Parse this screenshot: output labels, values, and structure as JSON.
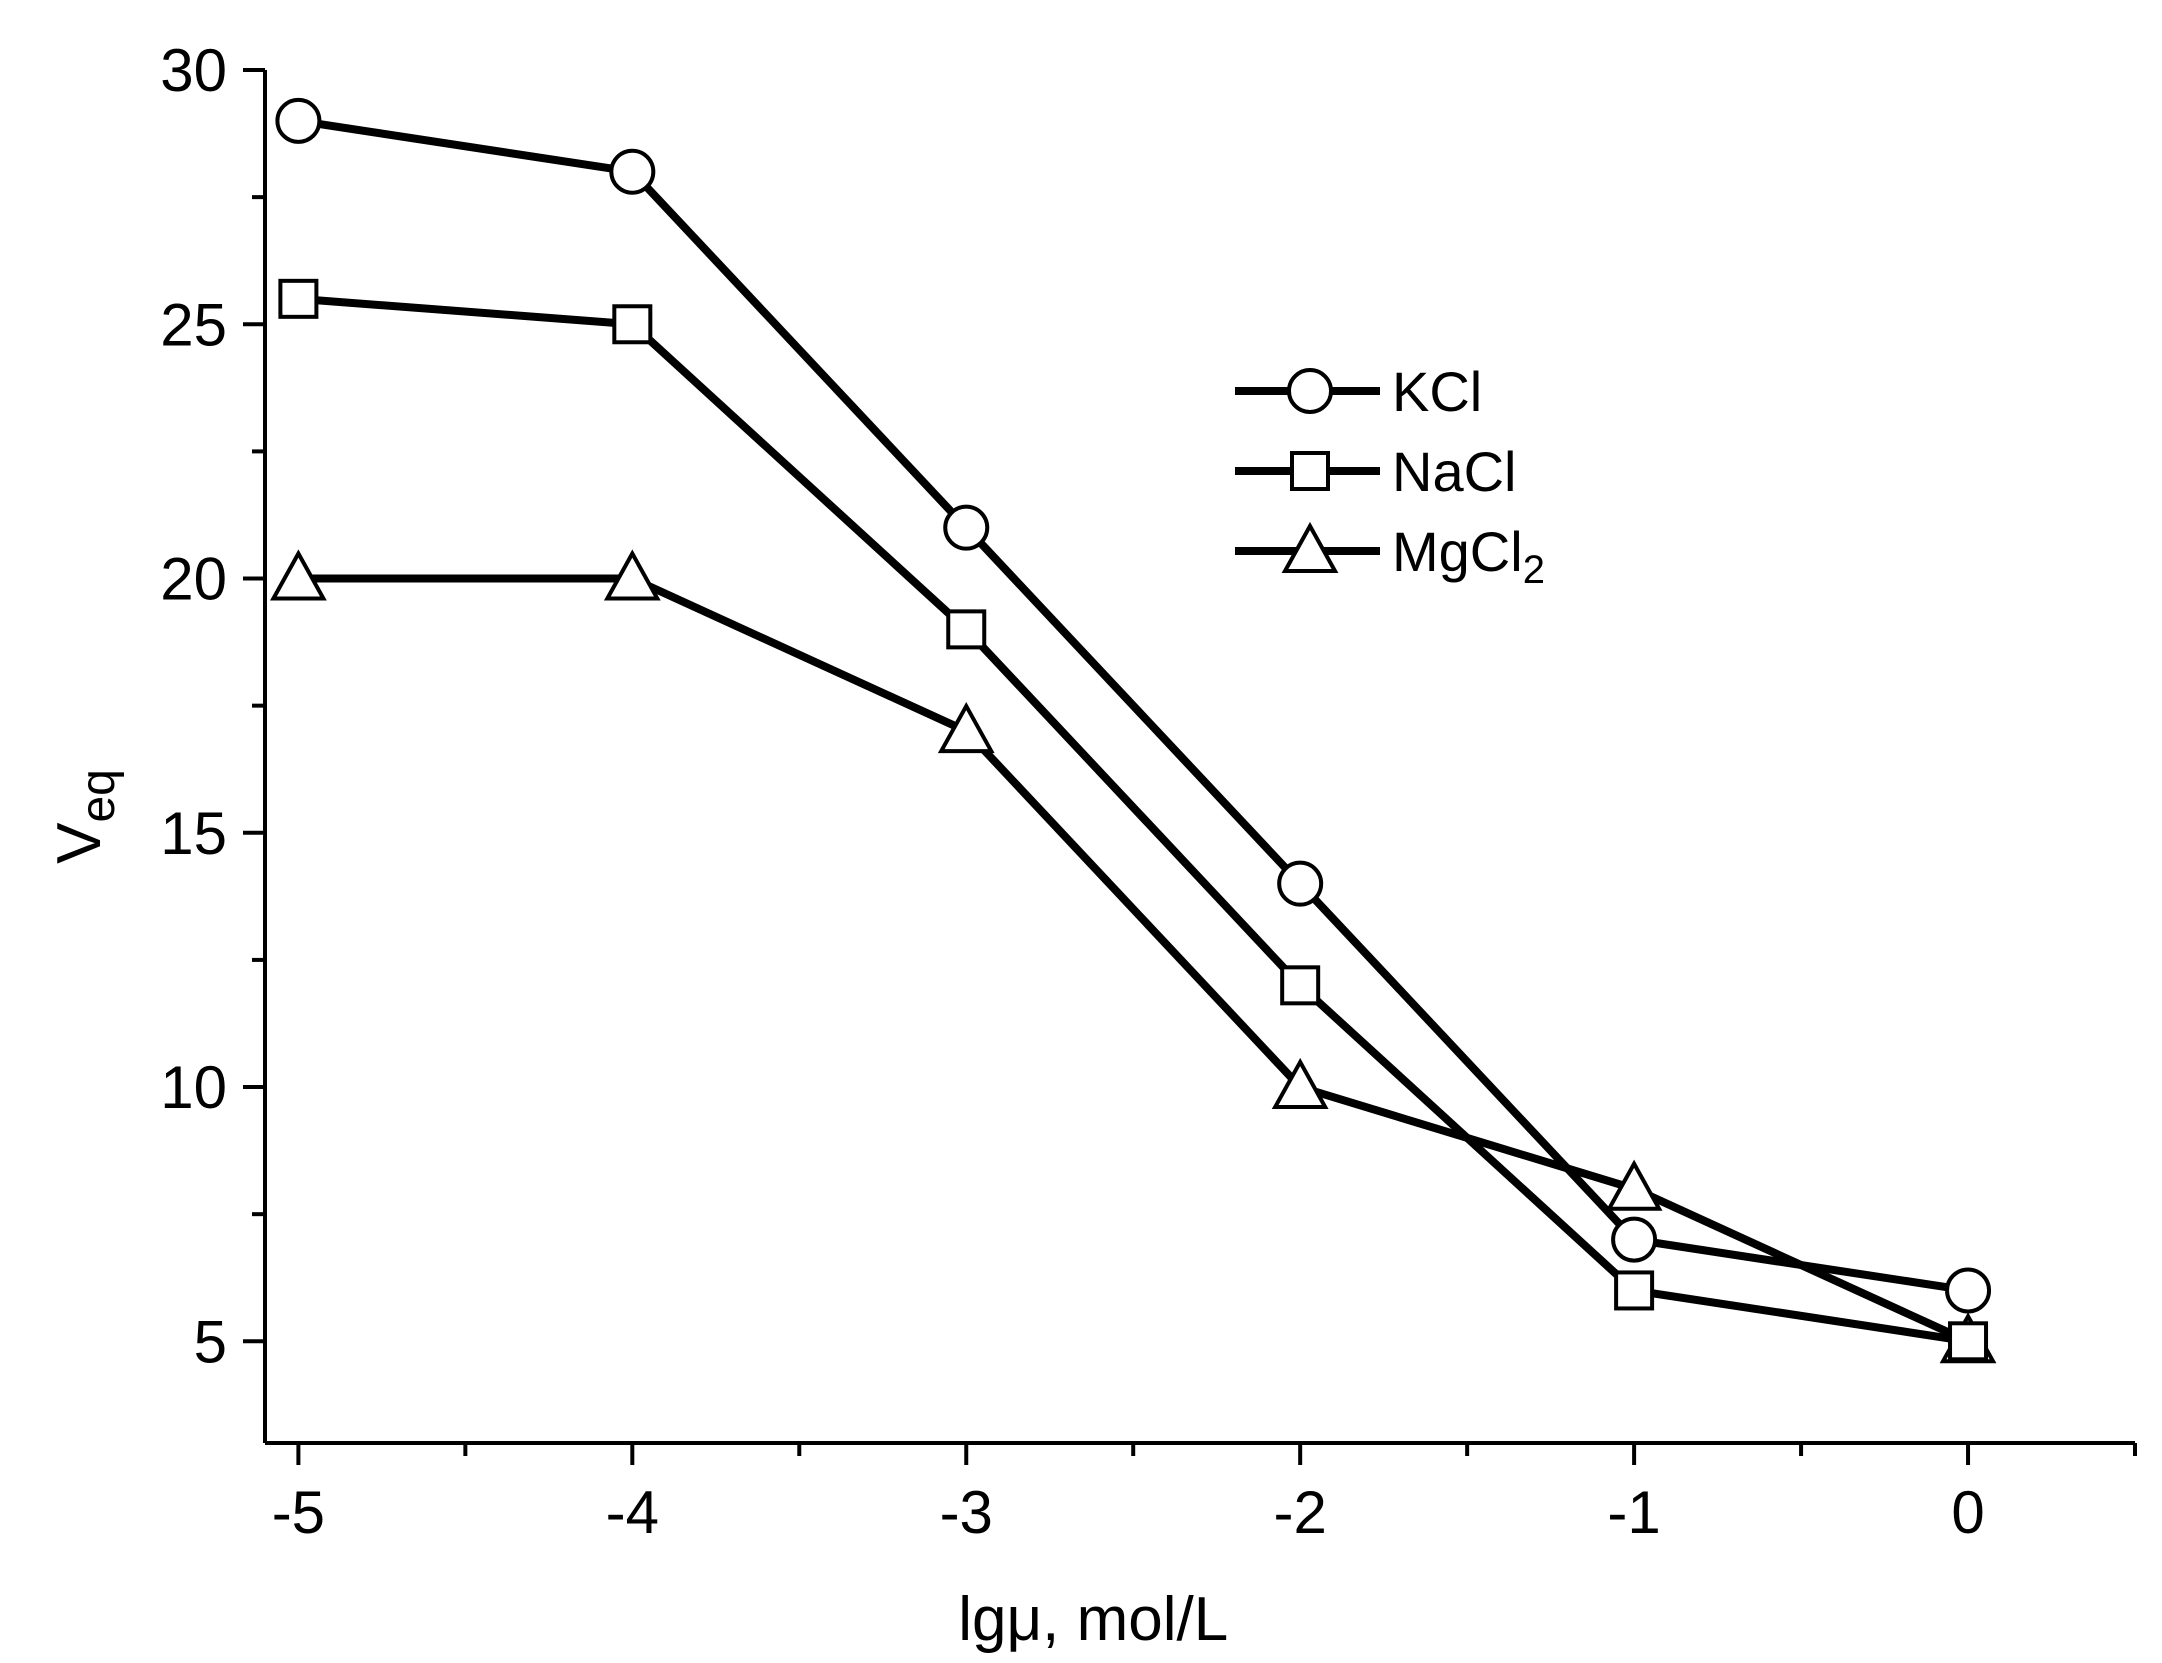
{
  "chart_data": {
    "type": "line",
    "title": "",
    "xlabel": "lgμ, mol/L",
    "ylabel_main": "V",
    "ylabel_sub": "eq",
    "x": [
      -5,
      -4,
      -3,
      -2,
      -1,
      0
    ],
    "xlim": [
      -5.1,
      0.5
    ],
    "ylim": [
      3,
      30
    ],
    "xticks": [
      -5,
      -4,
      -3,
      -2,
      -1,
      0
    ],
    "xtick_labels": [
      "-5",
      "-4",
      "-3",
      "-2",
      "-1",
      "0"
    ],
    "yticks": [
      5,
      10,
      15,
      20,
      25,
      30
    ],
    "ytick_labels": [
      "5",
      "10",
      "15",
      "20",
      "25",
      "30"
    ],
    "grid": false,
    "legend_position": "upper-right",
    "line_color": "#000000",
    "marker_fill": "#ffffff",
    "series": [
      {
        "name": "KCl",
        "marker": "circle",
        "values": [
          29,
          28,
          21,
          14,
          7,
          6
        ]
      },
      {
        "name": "NaCl",
        "marker": "square",
        "values": [
          25.5,
          25,
          19,
          12,
          6,
          5
        ]
      },
      {
        "name": "MgCl",
        "name_sub": "2",
        "marker": "triangle",
        "values": [
          20,
          20,
          17,
          10,
          8,
          5
        ]
      }
    ]
  }
}
